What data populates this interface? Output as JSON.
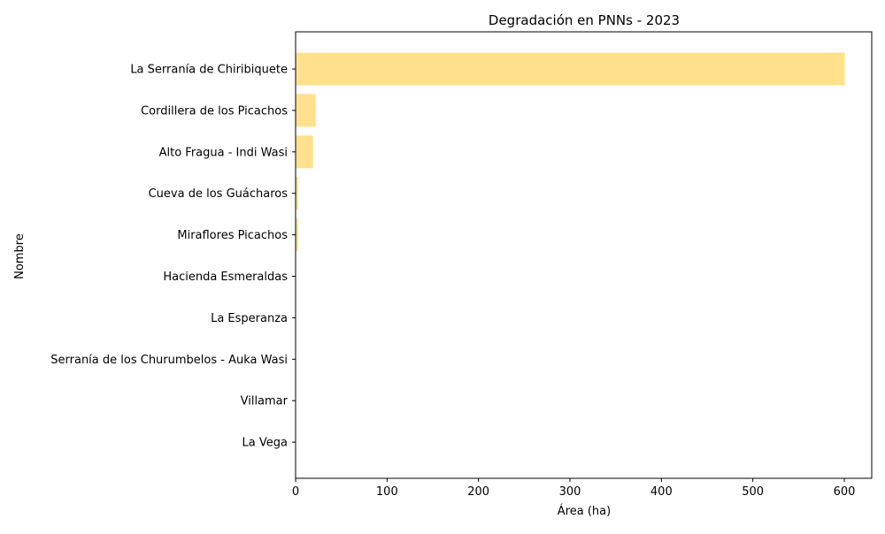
{
  "chart_data": {
    "type": "bar",
    "orientation": "horizontal",
    "title": "Degradación en PNNs - 2023",
    "xlabel": "Área (ha)",
    "ylabel": "Nombre",
    "categories": [
      "La Serranía de Chiribiquete",
      "Cordillera de los Picachos",
      "Alto Fragua - Indi Wasi",
      "Cueva de los Guácharos",
      "Miraflores Picachos",
      "Hacienda Esmeraldas",
      "La Esperanza",
      "Serranía de los Churumbelos  - Auka Wasi",
      "Villamar",
      "La Vega"
    ],
    "values": [
      600.5,
      22,
      19,
      2.5,
      2.5,
      0.3,
      0.2,
      0.2,
      0.1,
      0.1
    ],
    "xlim": [
      0,
      630
    ],
    "xticks": [
      0,
      100,
      200,
      300,
      400,
      500,
      600
    ],
    "bar_color": "#ffe08c",
    "grid": false,
    "legend": "none"
  }
}
